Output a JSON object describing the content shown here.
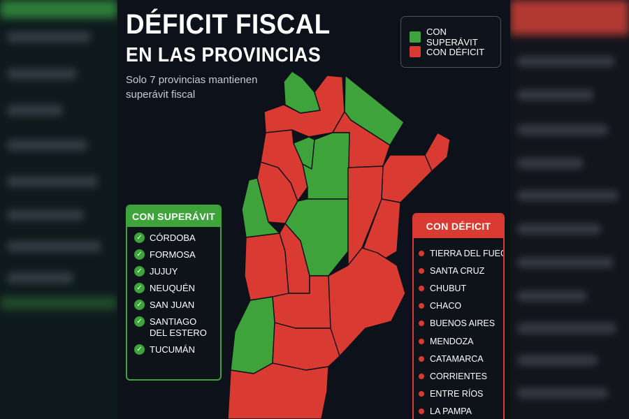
{
  "title_line1": "DÉFICIT FISCAL",
  "title_line2": "EN LAS PROVINCIAS",
  "subtitle": "Solo 7 provincias mantienen superávit fiscal",
  "colors": {
    "superavit": "#3ea33a",
    "deficit": "#d93a32",
    "background": "#0d1119"
  },
  "legend": {
    "superavit_label": "CON SUPERÁVIT",
    "deficit_label": "CON DÉFICIT"
  },
  "superavit_panel": {
    "title": "CON SUPERÁVIT",
    "icon": "check-circle-icon",
    "items": [
      "CÓRDOBA",
      "FORMOSA",
      "JUJUY",
      "NEUQUÉN",
      "SAN JUAN",
      "SANTIAGO\nDEL ESTERO",
      "TUCUMÁN"
    ]
  },
  "deficit_panel": {
    "title": "CON DÉFICIT",
    "icon": "bullet-dot-icon",
    "items": [
      "TIERRA DEL FUEGO",
      "SANTA CRUZ",
      "CHUBUT",
      "CHACO",
      "BUENOS AIRES",
      "MENDOZA",
      "CATAMARCA",
      "CORRIENTES",
      "ENTRE RÍOS",
      "LA PAMPA"
    ]
  },
  "map_regions": [
    {
      "id": "jujuy",
      "status": "superavit"
    },
    {
      "id": "salta",
      "status": "deficit"
    },
    {
      "id": "formosa",
      "status": "superavit"
    },
    {
      "id": "chaco",
      "status": "deficit"
    },
    {
      "id": "misiones",
      "status": "deficit"
    },
    {
      "id": "corrientes",
      "status": "deficit"
    },
    {
      "id": "catamarca",
      "status": "deficit"
    },
    {
      "id": "tucuman",
      "status": "superavit"
    },
    {
      "id": "santiago-del-estero",
      "status": "superavit"
    },
    {
      "id": "la-rioja",
      "status": "deficit"
    },
    {
      "id": "san-juan",
      "status": "superavit"
    },
    {
      "id": "cordoba",
      "status": "superavit"
    },
    {
      "id": "santa-fe",
      "status": "deficit"
    },
    {
      "id": "entre-rios",
      "status": "deficit"
    },
    {
      "id": "mendoza",
      "status": "deficit"
    },
    {
      "id": "san-luis",
      "status": "deficit"
    },
    {
      "id": "buenos-aires",
      "status": "deficit"
    },
    {
      "id": "la-pampa",
      "status": "deficit"
    },
    {
      "id": "neuquen",
      "status": "superavit"
    },
    {
      "id": "rio-negro",
      "status": "deficit"
    },
    {
      "id": "chubut",
      "status": "deficit"
    }
  ]
}
